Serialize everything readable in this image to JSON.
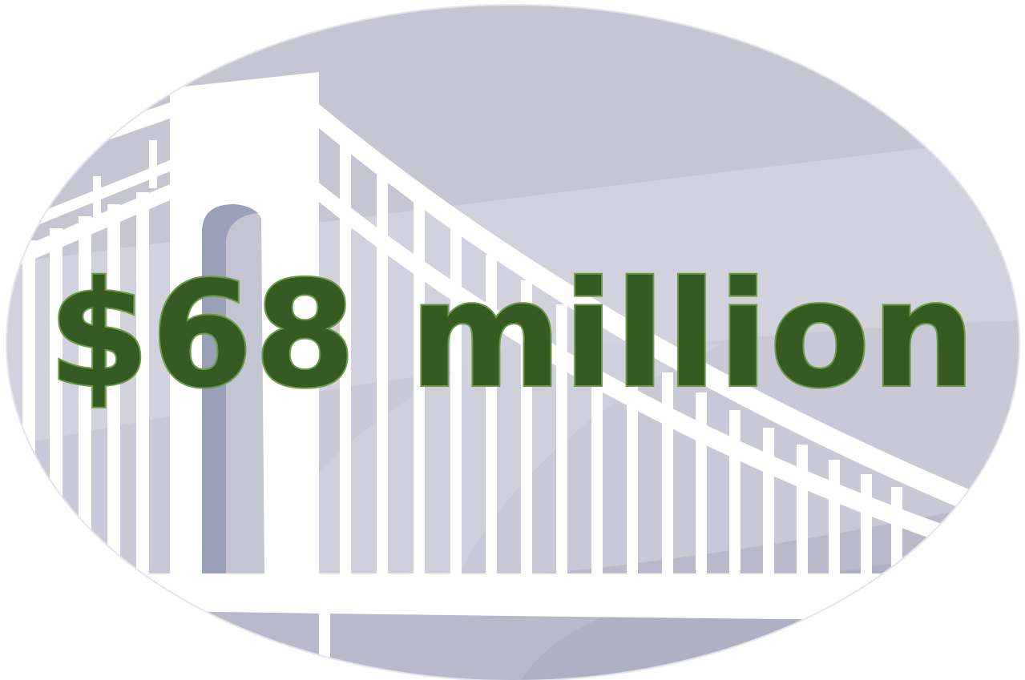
{
  "headline": {
    "text": "$68 million"
  },
  "colors": {
    "headline_fill": "#355a22",
    "headline_outline": "#6a9a46",
    "sky_dark": "#c6c6d3",
    "sky_light": "#d2d2de",
    "water": "#b4b4c8",
    "tower_shade": "#9aa0b8",
    "bridge": "#ffffff"
  },
  "illustration": {
    "subject": "suspension-bridge",
    "icon": "bridge-icon"
  }
}
